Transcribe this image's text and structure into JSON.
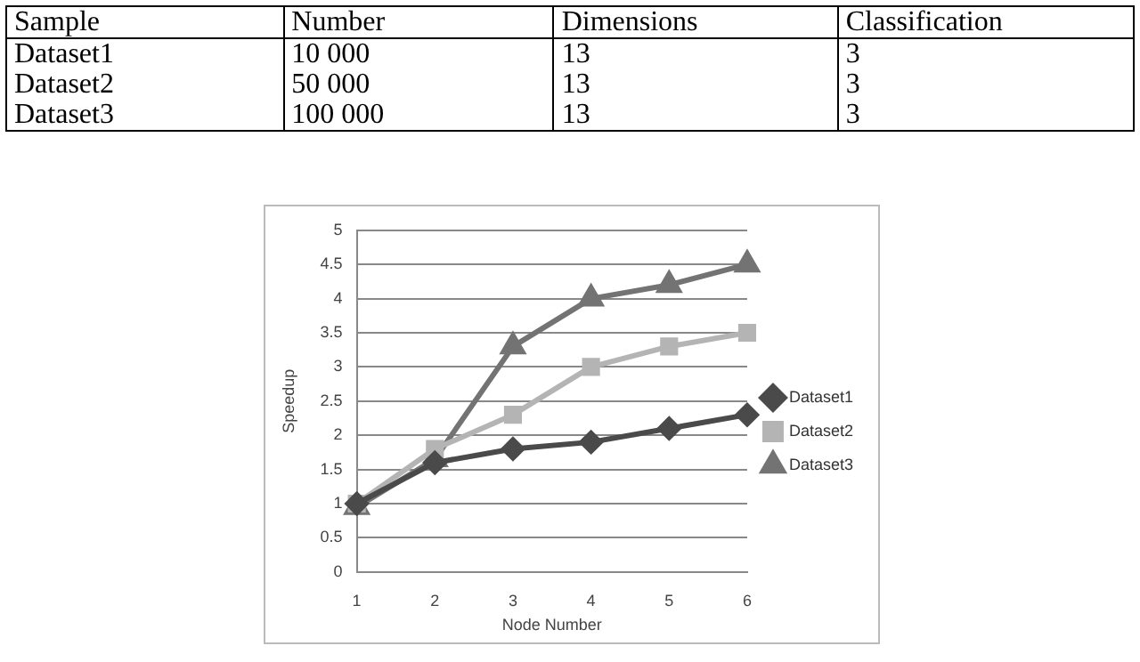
{
  "chart_data": {
    "type": "line",
    "xlabel": "Node Number",
    "ylabel": "Speedup",
    "annotations": [
      "Sample",
      "Number",
      "Dimensions",
      "Classification",
      "Dataset1",
      "10 000",
      "13",
      "3",
      "Dataset2",
      "50 000",
      "13",
      "3",
      "Dataset3",
      "100 000",
      "13",
      "3"
    ],
    "categories": [
      "1",
      "2",
      "3",
      "4",
      "5",
      "6"
    ],
    "ylim": [
      0,
      5
    ],
    "yticks": [
      0,
      0.5,
      1,
      1.5,
      2,
      2.5,
      3,
      3.5,
      4,
      4.5,
      5
    ],
    "grid": "y",
    "legend": "right",
    "line_style": "solid",
    "series": [
      {
        "name": "Dataset1",
        "color": "#4a4a4a",
        "marker": "diamond",
        "values": [
          1,
          1.6,
          1.8,
          1.9,
          2.1,
          2.3
        ]
      },
      {
        "name": "Dataset2",
        "color": "#b4b4b4",
        "marker": "square",
        "values": [
          1,
          1.8,
          2.3,
          3,
          3.3,
          3.5
        ]
      },
      {
        "name": "Dataset3",
        "color": "#737373",
        "marker": "triangle",
        "values": [
          0.95,
          1.65,
          3.3,
          4,
          4.2,
          4.5
        ]
      }
    ]
  }
}
